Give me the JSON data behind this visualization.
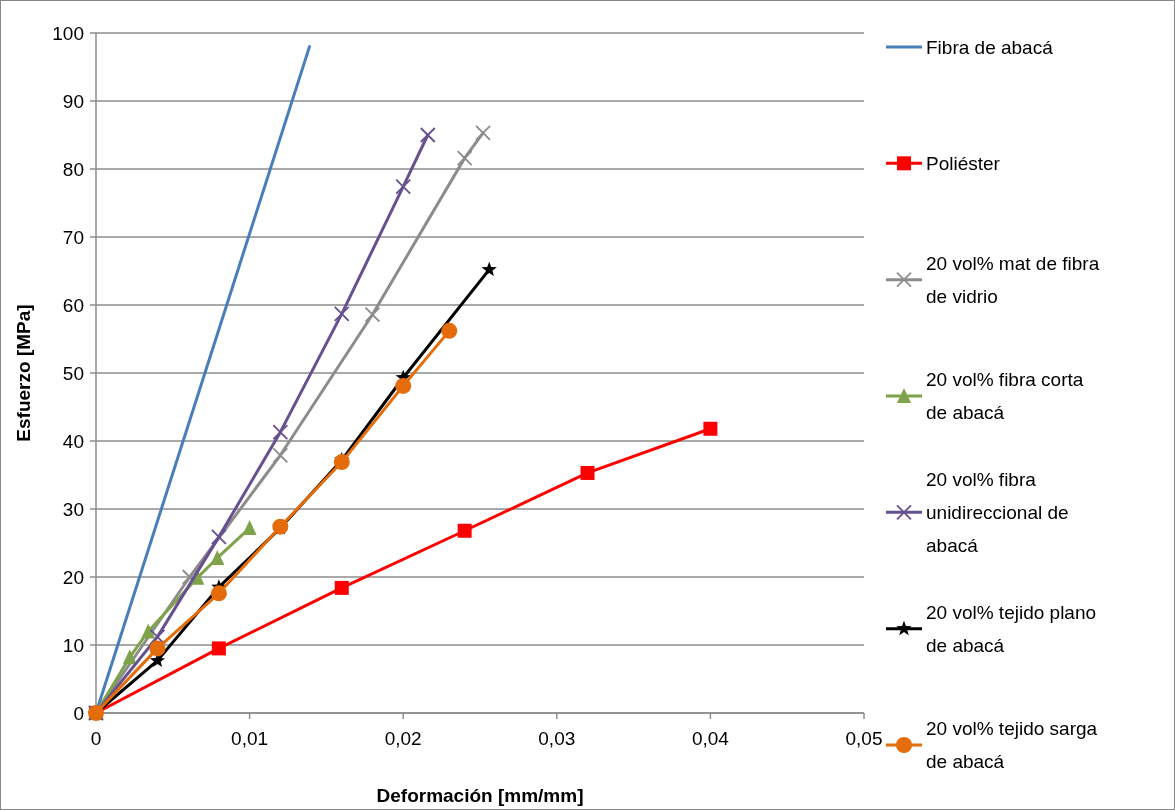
{
  "chart_data": {
    "type": "line",
    "xlabel": "Deformación [mm/mm]",
    "ylabel": "Esfuerzo [MPa]",
    "xlim": [
      0,
      0.05
    ],
    "ylim": [
      0,
      100
    ],
    "xticks": [
      0,
      {
        "value": 0.01,
        "label": "0,01"
      },
      {
        "value": 0.02,
        "label": "0,02"
      },
      {
        "value": 0.03,
        "label": "0,03"
      },
      {
        "value": 0.04,
        "label": "0,04"
      },
      {
        "value": 0.05,
        "label": "0,05"
      }
    ],
    "yticks": [
      0,
      10,
      20,
      30,
      40,
      50,
      60,
      70,
      80,
      90,
      100
    ],
    "grid": "y",
    "legend": "right",
    "series": [
      {
        "name": "Fibra de abacá",
        "color": "#4a7ebb",
        "marker": "none",
        "x": [
          0,
          0.0139
        ],
        "values": [
          0,
          98
        ]
      },
      {
        "name": "Poliéster",
        "color": "#ff0000",
        "marker": "square",
        "x": [
          0,
          0.008,
          0.016,
          0.024,
          0.032,
          0.04
        ],
        "values": [
          0,
          9.5,
          18.4,
          26.8,
          35.3,
          41.8
        ]
      },
      {
        "name": "20 vol% mat de fibra de vidrio",
        "color": "#8c8c8c",
        "marker": "cross",
        "x": [
          0,
          0.0061,
          0.012,
          0.018,
          0.024,
          0.0252
        ],
        "values": [
          0,
          20,
          37.9,
          58.6,
          81.6,
          85.3
        ]
      },
      {
        "name": "20 vol% fibra corta de abacá",
        "color": "#7fa34a",
        "marker": "triangle",
        "x": [
          0,
          0.0022,
          0.0034,
          0.0066,
          0.0079,
          0.01
        ],
        "values": [
          0,
          8.2,
          12,
          19.9,
          22.8,
          27.2
        ]
      },
      {
        "name": "20 vol% fibra unidireccional de abacá",
        "color": "#66508f",
        "marker": "cross",
        "x": [
          0,
          0.004,
          0.008,
          0.012,
          0.016,
          0.02,
          0.0216
        ],
        "values": [
          0,
          11.2,
          25.9,
          41.3,
          58.7,
          77.4,
          85
        ]
      },
      {
        "name": "20 vol% tejido plano de abacá",
        "color": "#000000",
        "marker": "star",
        "x": [
          0,
          0.004,
          0.008,
          0.012,
          0.016,
          0.02,
          0.0256
        ],
        "values": [
          0,
          7.7,
          18.5,
          27.2,
          37.2,
          49.3,
          65.2
        ]
      },
      {
        "name": "20 vol% tejido sarga de abacá",
        "color": "#e46c0a",
        "marker": "circle",
        "x": [
          0,
          0.004,
          0.008,
          0.012,
          0.016,
          0.02,
          0.023
        ],
        "values": [
          0,
          9.5,
          17.6,
          27.4,
          36.9,
          48.1,
          56.2
        ]
      }
    ]
  }
}
